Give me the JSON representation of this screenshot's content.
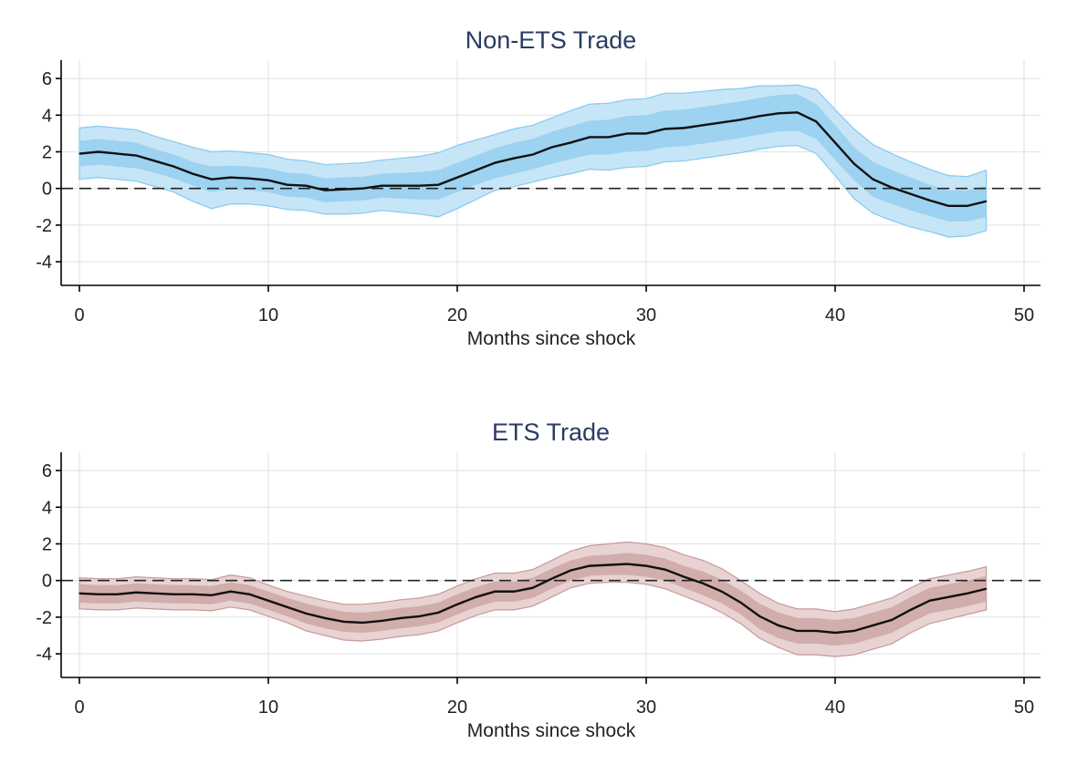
{
  "chart_data": [
    {
      "type": "line",
      "title": "Non-ETS Trade",
      "xlabel": "Months since shock",
      "ylabel": "",
      "xlim": [
        0,
        50
      ],
      "ylim": [
        -5.3,
        7
      ],
      "xticks": [
        0,
        10,
        20,
        30,
        40,
        50
      ],
      "yticks": [
        6,
        4,
        2,
        0,
        -2,
        -4
      ],
      "grid": true,
      "reference_line_y": 0,
      "colors": {
        "outer_band": "#c6e5f7",
        "inner_band": "#9dd2f0",
        "band_edge": "#88c9ee",
        "line": "#111111"
      },
      "x": [
        0,
        1,
        2,
        3,
        4,
        5,
        6,
        7,
        8,
        9,
        10,
        11,
        12,
        13,
        14,
        15,
        16,
        17,
        18,
        19,
        20,
        21,
        22,
        23,
        24,
        25,
        26,
        27,
        28,
        29,
        30,
        31,
        32,
        33,
        34,
        35,
        36,
        37,
        38,
        39,
        40,
        41,
        42,
        43,
        44,
        45,
        46,
        47,
        48
      ],
      "estimate": [
        1.9,
        2.0,
        1.9,
        1.8,
        1.5,
        1.2,
        0.8,
        0.5,
        0.6,
        0.55,
        0.45,
        0.2,
        0.15,
        -0.1,
        -0.05,
        0.0,
        0.15,
        0.15,
        0.15,
        0.2,
        0.6,
        1.0,
        1.4,
        1.65,
        1.85,
        2.25,
        2.5,
        2.8,
        2.8,
        3.0,
        3.0,
        3.25,
        3.3,
        3.45,
        3.6,
        3.75,
        3.95,
        4.1,
        4.15,
        3.65,
        2.5,
        1.35,
        0.5,
        0.05,
        -0.3,
        -0.65,
        -0.95,
        -0.95,
        -0.7
      ],
      "inner_lower": [
        1.2,
        1.3,
        1.2,
        1.1,
        0.85,
        0.55,
        0.15,
        -0.2,
        -0.05,
        -0.1,
        -0.2,
        -0.45,
        -0.5,
        -0.75,
        -0.7,
        -0.65,
        -0.5,
        -0.55,
        -0.6,
        -0.6,
        -0.2,
        0.2,
        0.55,
        0.8,
        1.05,
        1.35,
        1.6,
        1.85,
        1.85,
        2.0,
        2.05,
        2.25,
        2.3,
        2.45,
        2.6,
        2.75,
        2.95,
        3.1,
        3.15,
        2.7,
        1.55,
        0.45,
        -0.45,
        -0.85,
        -1.2,
        -1.5,
        -1.8,
        -1.8,
        -1.55
      ],
      "inner_upper": [
        2.6,
        2.7,
        2.6,
        2.5,
        2.15,
        1.85,
        1.45,
        1.2,
        1.25,
        1.2,
        1.1,
        0.85,
        0.8,
        0.55,
        0.6,
        0.65,
        0.8,
        0.85,
        0.9,
        1.0,
        1.4,
        1.8,
        2.2,
        2.5,
        2.7,
        3.1,
        3.4,
        3.7,
        3.75,
        3.95,
        4.0,
        4.25,
        4.3,
        4.45,
        4.6,
        4.75,
        4.95,
        5.1,
        5.15,
        4.6,
        3.45,
        2.25,
        1.45,
        1.0,
        0.6,
        0.2,
        -0.1,
        -0.1,
        0.15
      ],
      "outer_lower": [
        0.5,
        0.6,
        0.5,
        0.4,
        0.1,
        -0.2,
        -0.7,
        -1.1,
        -0.85,
        -0.85,
        -0.95,
        -1.15,
        -1.2,
        -1.4,
        -1.4,
        -1.35,
        -1.2,
        -1.3,
        -1.4,
        -1.55,
        -1.1,
        -0.6,
        -0.1,
        0.1,
        0.35,
        0.6,
        0.8,
        1.05,
        1.0,
        1.15,
        1.2,
        1.45,
        1.5,
        1.65,
        1.8,
        1.95,
        2.15,
        2.3,
        2.35,
        1.9,
        0.7,
        -0.55,
        -1.35,
        -1.75,
        -2.1,
        -2.35,
        -2.65,
        -2.6,
        -2.3
      ],
      "outer_upper": [
        3.3,
        3.4,
        3.3,
        3.2,
        2.85,
        2.55,
        2.25,
        2.0,
        2.05,
        1.95,
        1.85,
        1.6,
        1.5,
        1.3,
        1.35,
        1.4,
        1.55,
        1.65,
        1.75,
        1.95,
        2.35,
        2.65,
        2.95,
        3.25,
        3.45,
        3.85,
        4.25,
        4.6,
        4.65,
        4.85,
        4.9,
        5.2,
        5.2,
        5.3,
        5.4,
        5.45,
        5.6,
        5.6,
        5.65,
        5.4,
        4.3,
        3.25,
        2.4,
        1.9,
        1.45,
        1.05,
        0.7,
        0.65,
        1.0
      ]
    },
    {
      "type": "line",
      "title": "ETS Trade",
      "xlabel": "Months since shock",
      "ylabel": "",
      "xlim": [
        0,
        50
      ],
      "ylim": [
        -5.3,
        7
      ],
      "xticks": [
        0,
        10,
        20,
        30,
        40,
        50
      ],
      "yticks": [
        6,
        4,
        2,
        0,
        -2,
        -4
      ],
      "grid": true,
      "reference_line_y": 0,
      "colors": {
        "outer_band": "#e8d3d2",
        "inner_band": "#d1adab",
        "band_edge": "#c59a98",
        "line": "#111111"
      },
      "x": [
        0,
        1,
        2,
        3,
        4,
        5,
        6,
        7,
        8,
        9,
        10,
        11,
        12,
        13,
        14,
        15,
        16,
        17,
        18,
        19,
        20,
        21,
        22,
        23,
        24,
        25,
        26,
        27,
        28,
        29,
        30,
        31,
        32,
        33,
        34,
        35,
        36,
        37,
        38,
        39,
        40,
        41,
        42,
        43,
        44,
        45,
        46,
        47,
        48
      ],
      "estimate": [
        -0.7,
        -0.75,
        -0.75,
        -0.65,
        -0.7,
        -0.75,
        -0.75,
        -0.8,
        -0.6,
        -0.75,
        -1.1,
        -1.45,
        -1.8,
        -2.05,
        -2.25,
        -2.3,
        -2.2,
        -2.05,
        -1.95,
        -1.75,
        -1.3,
        -0.9,
        -0.6,
        -0.6,
        -0.4,
        0.1,
        0.55,
        0.8,
        0.85,
        0.9,
        0.8,
        0.6,
        0.2,
        -0.15,
        -0.6,
        -1.2,
        -1.95,
        -2.45,
        -2.75,
        -2.75,
        -2.85,
        -2.75,
        -2.45,
        -2.15,
        -1.6,
        -1.1,
        -0.9,
        -0.7,
        -0.45
      ],
      "inner_lower": [
        -1.2,
        -1.25,
        -1.25,
        -1.15,
        -1.2,
        -1.25,
        -1.25,
        -1.3,
        -1.1,
        -1.25,
        -1.6,
        -1.95,
        -2.35,
        -2.6,
        -2.8,
        -2.85,
        -2.75,
        -2.6,
        -2.5,
        -2.3,
        -1.85,
        -1.45,
        -1.15,
        -1.15,
        -0.95,
        -0.45,
        0.0,
        0.25,
        0.3,
        0.3,
        0.2,
        0.0,
        -0.4,
        -0.8,
        -1.25,
        -1.85,
        -2.65,
        -3.15,
        -3.45,
        -3.45,
        -3.55,
        -3.45,
        -3.15,
        -2.85,
        -2.3,
        -1.8,
        -1.6,
        -1.4,
        -1.15
      ],
      "inner_upper": [
        -0.2,
        -0.25,
        -0.25,
        -0.15,
        -0.2,
        -0.25,
        -0.25,
        -0.3,
        -0.1,
        -0.25,
        -0.6,
        -0.95,
        -1.25,
        -1.5,
        -1.7,
        -1.75,
        -1.65,
        -1.5,
        -1.4,
        -1.2,
        -0.75,
        -0.35,
        -0.05,
        -0.05,
        0.15,
        0.65,
        1.1,
        1.35,
        1.4,
        1.5,
        1.4,
        1.2,
        0.8,
        0.5,
        0.05,
        -0.55,
        -1.25,
        -1.75,
        -2.05,
        -2.05,
        -2.15,
        -2.05,
        -1.75,
        -1.45,
        -0.9,
        -0.4,
        -0.2,
        0.0,
        0.25
      ],
      "outer_lower": [
        -1.55,
        -1.6,
        -1.6,
        -1.5,
        -1.55,
        -1.6,
        -1.6,
        -1.65,
        -1.45,
        -1.6,
        -1.95,
        -2.3,
        -2.75,
        -3.0,
        -3.25,
        -3.3,
        -3.2,
        -3.05,
        -2.95,
        -2.75,
        -2.3,
        -1.9,
        -1.6,
        -1.6,
        -1.4,
        -0.9,
        -0.4,
        -0.15,
        -0.1,
        -0.1,
        -0.2,
        -0.45,
        -0.85,
        -1.25,
        -1.75,
        -2.35,
        -3.15,
        -3.65,
        -4.05,
        -4.05,
        -4.15,
        -4.05,
        -3.75,
        -3.45,
        -2.85,
        -2.35,
        -2.1,
        -1.85,
        -1.6
      ],
      "outer_upper": [
        0.15,
        0.1,
        0.1,
        0.2,
        0.15,
        0.1,
        0.1,
        0.05,
        0.3,
        0.15,
        -0.25,
        -0.6,
        -0.85,
        -1.1,
        -1.3,
        -1.3,
        -1.2,
        -1.05,
        -0.95,
        -0.75,
        -0.3,
        0.1,
        0.4,
        0.4,
        0.6,
        1.1,
        1.6,
        1.9,
        2.0,
        2.1,
        2.0,
        1.8,
        1.4,
        1.1,
        0.65,
        0.0,
        -0.7,
        -1.25,
        -1.55,
        -1.55,
        -1.7,
        -1.55,
        -1.25,
        -0.95,
        -0.4,
        0.1,
        0.3,
        0.5,
        0.75
      ]
    }
  ]
}
